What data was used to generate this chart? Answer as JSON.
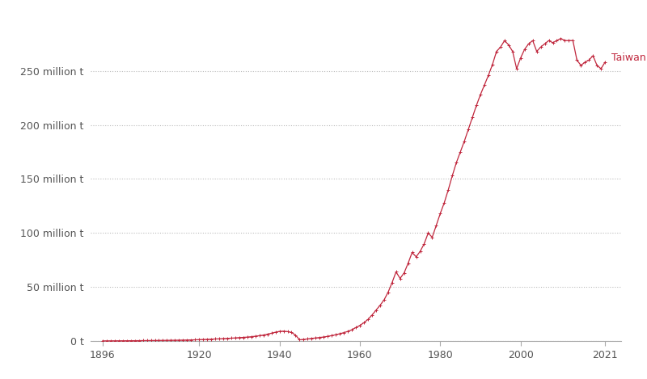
{
  "line_color": "#c0273d",
  "marker_color": "#c0273d",
  "background_color": "#ffffff",
  "grid_color": "#bbbbbb",
  "label_color": "#555555",
  "annotation_text": "Taiwan",
  "annotation_color": "#c0273d",
  "ytick_labels": [
    "0 t",
    "50 million t",
    "100 million t",
    "150 million t",
    "200 million t",
    "250 million t"
  ],
  "ytick_values": [
    0,
    50000000,
    100000000,
    150000000,
    200000000,
    250000000
  ],
  "xtick_values": [
    1896,
    1920,
    1940,
    1960,
    1980,
    2000,
    2021
  ],
  "years": [
    1896,
    1897,
    1898,
    1899,
    1900,
    1901,
    1902,
    1903,
    1904,
    1905,
    1906,
    1907,
    1908,
    1909,
    1910,
    1911,
    1912,
    1913,
    1914,
    1915,
    1916,
    1917,
    1918,
    1919,
    1920,
    1921,
    1922,
    1923,
    1924,
    1925,
    1926,
    1927,
    1928,
    1929,
    1930,
    1931,
    1932,
    1933,
    1934,
    1935,
    1936,
    1937,
    1938,
    1939,
    1940,
    1941,
    1942,
    1943,
    1944,
    1945,
    1946,
    1947,
    1948,
    1949,
    1950,
    1951,
    1952,
    1953,
    1954,
    1955,
    1956,
    1957,
    1958,
    1959,
    1960,
    1961,
    1962,
    1963,
    1964,
    1965,
    1966,
    1967,
    1968,
    1969,
    1970,
    1971,
    1972,
    1973,
    1974,
    1975,
    1976,
    1977,
    1978,
    1979,
    1980,
    1981,
    1982,
    1983,
    1984,
    1985,
    1986,
    1987,
    1988,
    1989,
    1990,
    1991,
    1992,
    1993,
    1994,
    1995,
    1996,
    1997,
    1998,
    1999,
    2000,
    2001,
    2002,
    2003,
    2004,
    2005,
    2006,
    2007,
    2008,
    2009,
    2010,
    2011,
    2012,
    2013,
    2014,
    2015,
    2016,
    2017,
    2018,
    2019,
    2020,
    2021
  ],
  "values": [
    200000,
    220000,
    240000,
    260000,
    280000,
    300000,
    320000,
    350000,
    380000,
    410000,
    450000,
    490000,
    530000,
    570000,
    610000,
    650000,
    700000,
    750000,
    800000,
    860000,
    930000,
    1000000,
    1080000,
    1200000,
    1350000,
    1480000,
    1620000,
    1800000,
    1950000,
    2100000,
    2280000,
    2480000,
    2700000,
    2950000,
    3200000,
    3420000,
    3700000,
    4050000,
    4500000,
    5000000,
    5600000,
    6400000,
    7300000,
    8200000,
    9000000,
    9200000,
    8800000,
    8000000,
    5500000,
    1200000,
    1600000,
    2000000,
    2500000,
    2900000,
    3300000,
    3800000,
    4400000,
    5100000,
    5900000,
    6800000,
    7800000,
    9000000,
    10500000,
    12500000,
    14500000,
    17000000,
    20000000,
    24000000,
    28500000,
    33000000,
    38000000,
    45000000,
    54000000,
    64000000,
    58000000,
    63000000,
    72000000,
    82000000,
    78000000,
    83000000,
    90000000,
    100000000,
    96000000,
    107000000,
    118000000,
    128000000,
    140000000,
    153000000,
    165000000,
    175000000,
    185000000,
    196000000,
    207000000,
    218000000,
    228000000,
    237000000,
    246000000,
    256000000,
    268000000,
    272000000,
    278000000,
    274000000,
    268000000,
    252000000,
    262000000,
    270000000,
    275000000,
    278000000,
    268000000,
    272000000,
    275000000,
    278000000,
    276000000,
    278000000,
    280000000,
    278000000,
    278000000,
    278000000,
    260000000,
    255000000,
    258000000,
    260000000,
    264000000,
    255000000,
    252000000,
    258000000
  ],
  "ylim": [
    0,
    305000000
  ],
  "xlim": [
    1893,
    2025
  ]
}
